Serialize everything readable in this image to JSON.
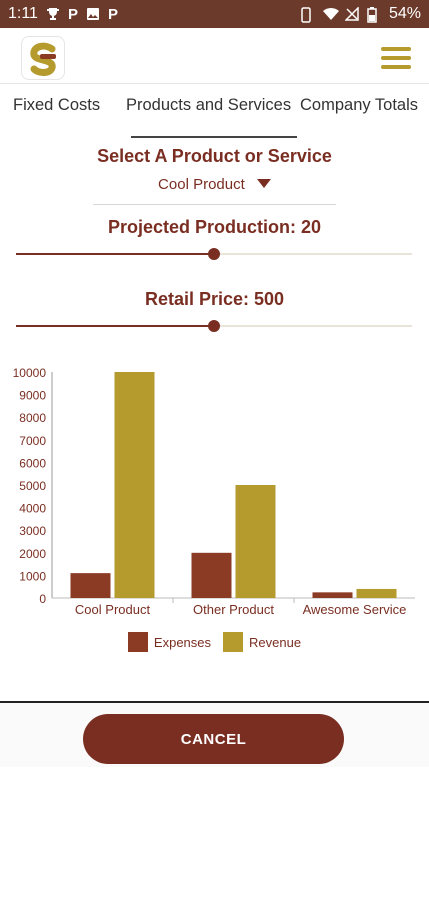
{
  "status_bar": {
    "time": "1:11",
    "battery": "54%"
  },
  "tabs": [
    {
      "label": "Fixed Costs"
    },
    {
      "label": "Products and Services",
      "active": true
    },
    {
      "label": "Company Totals"
    }
  ],
  "product_select": {
    "title": "Select A Product or Service",
    "selected": "Cool Product"
  },
  "projected_production": {
    "label": "Projected Production: 20",
    "fraction": 0.5
  },
  "retail_price": {
    "label": "Retail Price: 500",
    "fraction": 0.5
  },
  "colors": {
    "accent": "#7a2e22",
    "gold": "#b59a2d",
    "expenses": "#8b3a24",
    "revenue": "#b59a2d"
  },
  "chart_data": {
    "type": "bar",
    "categories": [
      "Cool Product",
      "Other Product",
      "Awesome Service"
    ],
    "series": [
      {
        "name": "Expenses",
        "values": [
          1100,
          2000,
          250
        ]
      },
      {
        "name": "Revenue",
        "values": [
          10000,
          5000,
          400
        ]
      }
    ],
    "yticks": [
      "0",
      "1000",
      "2000",
      "3000",
      "4000",
      "5000",
      "6000",
      "7000",
      "8000",
      "9000",
      "10000"
    ],
    "ylim": [
      0,
      10000
    ],
    "legend_position": "bottom"
  },
  "footer": {
    "cancel_label": "CANCEL"
  }
}
